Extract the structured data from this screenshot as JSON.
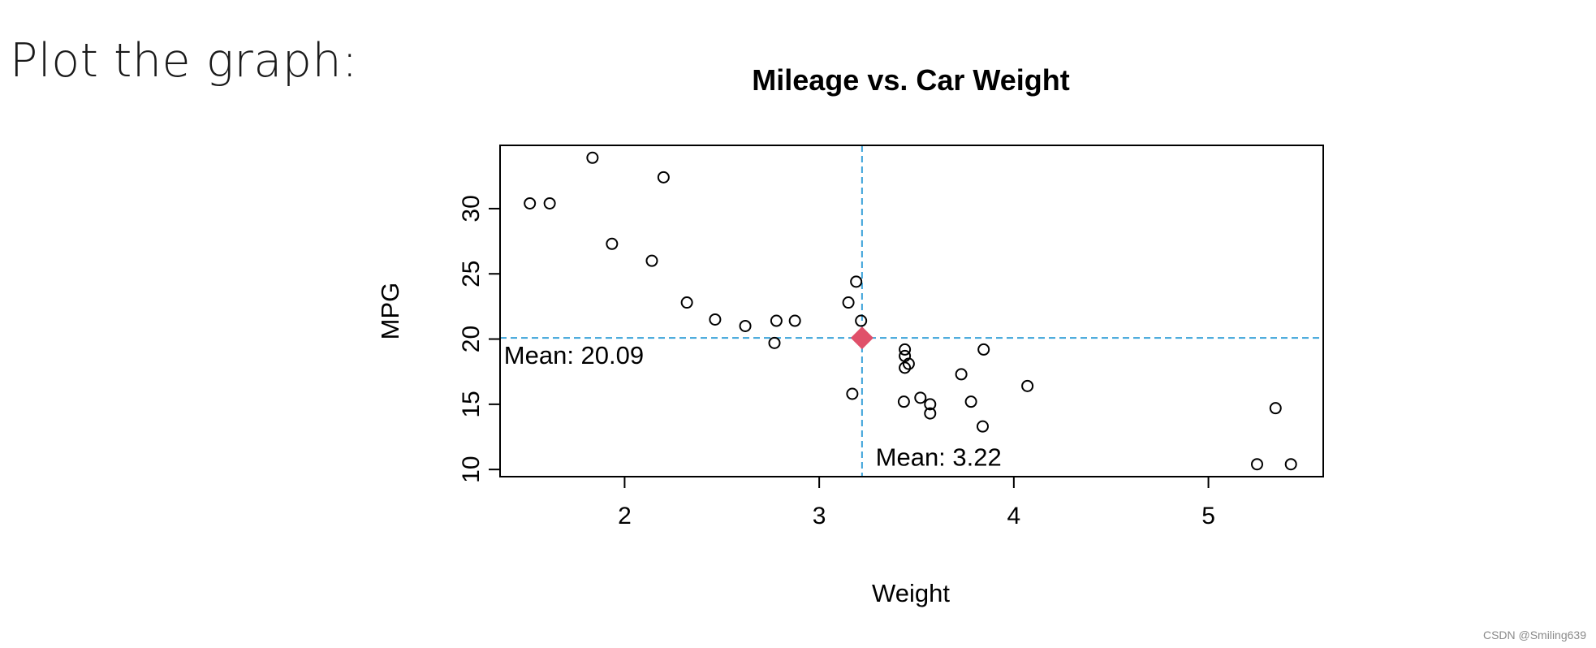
{
  "heading": "Plot the graph:",
  "watermark": "CSDN @Smiling639",
  "chart_data": {
    "type": "scatter",
    "title": "Mileage vs. Car Weight",
    "xlabel": "Weight",
    "ylabel": "MPG",
    "xlim": [
      1.36,
      5.59
    ],
    "ylim": [
      9.45,
      34.85
    ],
    "xticks": [
      2,
      3,
      4,
      5
    ],
    "yticks": [
      10,
      15,
      20,
      25,
      30
    ],
    "grid": false,
    "points_x": [
      2.62,
      2.875,
      2.32,
      3.215,
      3.44,
      3.46,
      3.57,
      3.19,
      3.15,
      3.44,
      3.44,
      4.07,
      3.73,
      3.78,
      5.25,
      5.424,
      5.345,
      2.2,
      1.615,
      1.835,
      2.465,
      3.52,
      3.435,
      3.84,
      3.845,
      1.935,
      2.14,
      1.513,
      3.17,
      2.77,
      3.57,
      2.78
    ],
    "points_y": [
      21.0,
      21.4,
      22.8,
      21.4,
      18.7,
      18.1,
      14.3,
      24.4,
      22.8,
      19.2,
      17.8,
      16.4,
      17.3,
      15.2,
      10.4,
      10.4,
      14.7,
      32.4,
      30.4,
      33.9,
      21.5,
      15.5,
      15.2,
      13.3,
      19.2,
      27.3,
      26.0,
      30.4,
      15.8,
      19.7,
      15.0,
      21.4
    ],
    "mean_point": {
      "x": 3.22,
      "y": 20.09,
      "color": "#e0506a"
    },
    "reference_lines": {
      "color": "#3ba3d9",
      "style": "dashed"
    },
    "annotations": [
      {
        "text": "Mean: 20.09",
        "x": 1.38,
        "y": 18.1
      },
      {
        "text": "Mean: 3.22",
        "x": 3.29,
        "y": 10.3
      }
    ],
    "colors": {
      "points": "#000000",
      "axes": "#000000"
    }
  }
}
